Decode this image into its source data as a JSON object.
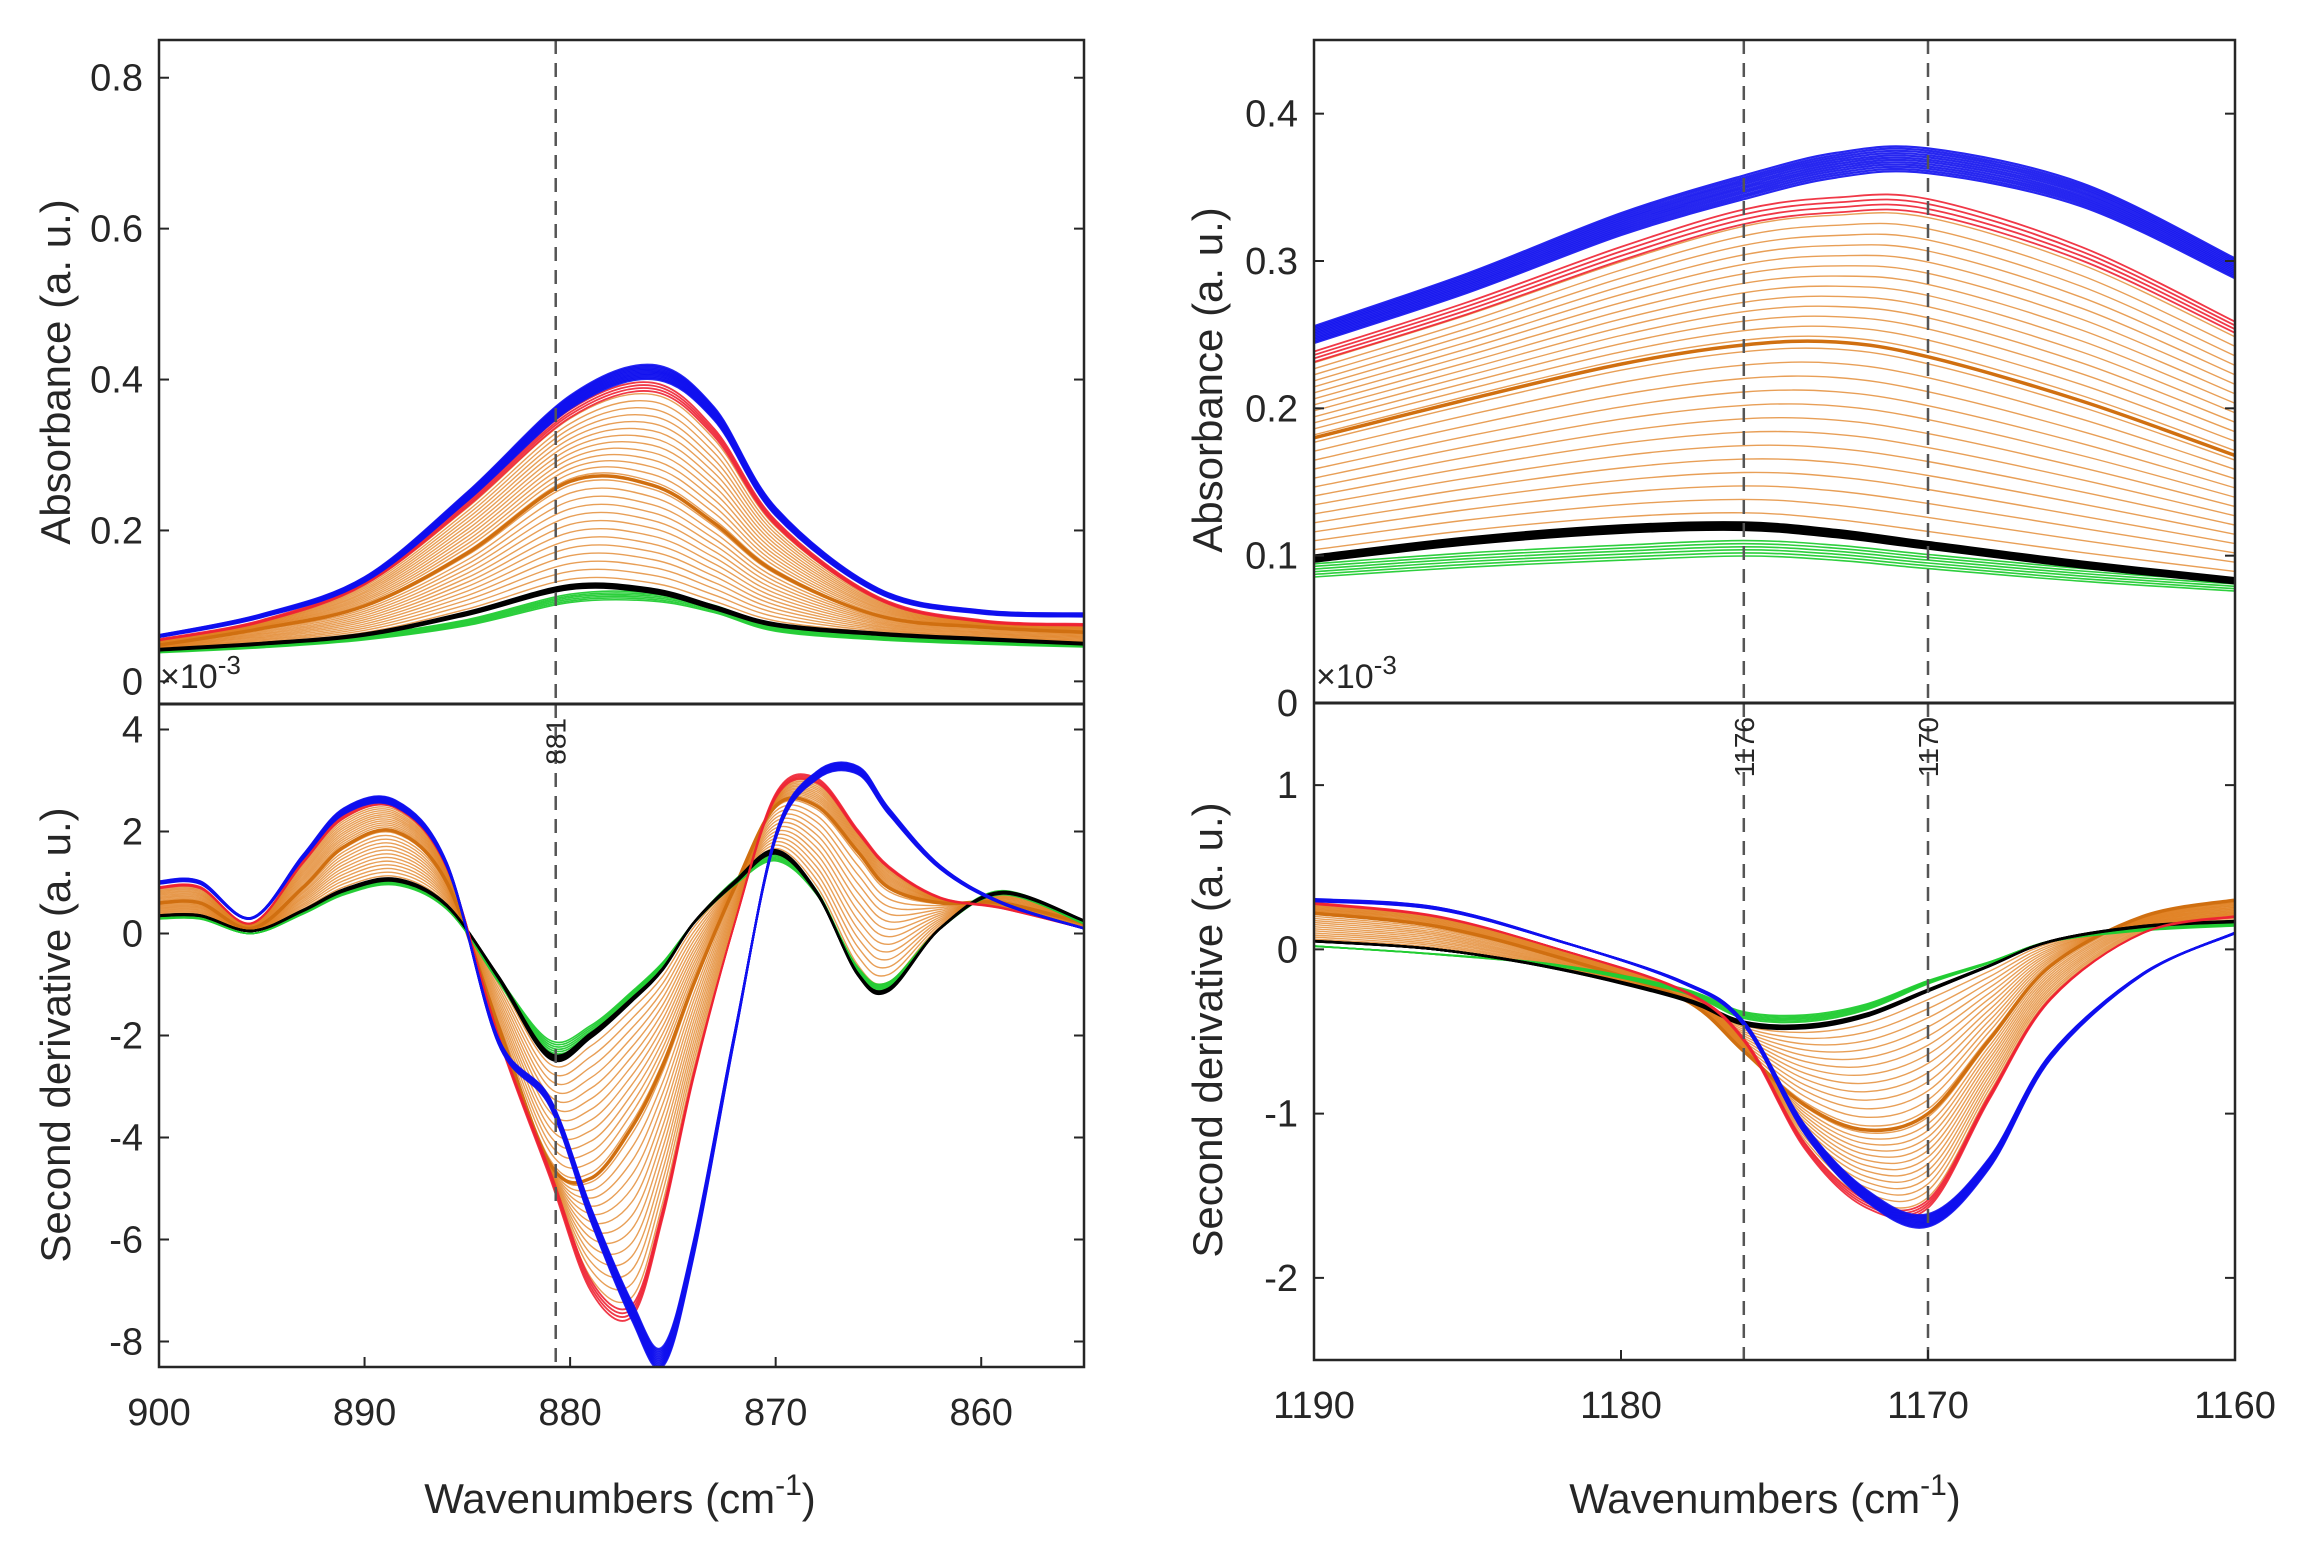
{
  "colors": {
    "frame": "#262626",
    "marker": "#555555",
    "black_series": "#000000",
    "green_series": "#22cc33",
    "orange_series": "#e07f1f",
    "red_series": "#ee2233",
    "blue_series": "#1010ee"
  },
  "labels": {
    "left_absorbance_ylabel": "Absorbance (a. u.)",
    "left_derivative_ylabel": "Second derivative (a. u.)",
    "left_xlabel_main": "Wavenumbers (cm",
    "left_xlabel_sup": "-1",
    "left_xlabel_end": ")",
    "left_multiplier_base": "×10",
    "left_multiplier_exp": "-3",
    "right_absorbance_ylabel": "Absorbance (a. u.)",
    "right_derivative_ylabel": "Second derivative (a. u.)",
    "right_xlabel_main": "Wavenumbers (cm",
    "right_xlabel_sup": "-1",
    "right_xlabel_end": ")",
    "right_multiplier_base": "×10",
    "right_multiplier_exp": "-3"
  },
  "chart_data": [
    {
      "type": "line",
      "panel": "left-absorbance",
      "title": "",
      "xlabel": "",
      "ylabel": "Absorbance (a. u.)",
      "xlim": [
        900,
        855
      ],
      "ylim": [
        -0.03,
        0.85
      ],
      "yticks": [
        0,
        0.2,
        0.4,
        0.6,
        0.8
      ],
      "ytick_labels": [
        "0",
        "0.2",
        "0.4",
        "0.6",
        "0.8"
      ],
      "x_reversed": true,
      "vlines": [
        {
          "x": 880.7,
          "label": "881"
        }
      ],
      "x": [
        900,
        895,
        890,
        885,
        880,
        876,
        873,
        870,
        865,
        860,
        855
      ],
      "series": [
        {
          "name": "green",
          "values": [
            0.04,
            0.047,
            0.058,
            0.078,
            0.11,
            0.112,
            0.096,
            0.07,
            0.058,
            0.052,
            0.048
          ]
        },
        {
          "name": "black",
          "values": [
            0.042,
            0.05,
            0.062,
            0.09,
            0.125,
            0.12,
            0.098,
            0.075,
            0.063,
            0.056,
            0.05
          ]
        },
        {
          "name": "orange",
          "values": [
            0.048,
            0.07,
            0.1,
            0.17,
            0.265,
            0.26,
            0.21,
            0.145,
            0.087,
            0.072,
            0.065
          ]
        },
        {
          "name": "red",
          "values": [
            0.055,
            0.08,
            0.13,
            0.235,
            0.355,
            0.39,
            0.33,
            0.21,
            0.11,
            0.08,
            0.075
          ]
        },
        {
          "name": "blue",
          "values": [
            0.06,
            0.087,
            0.135,
            0.245,
            0.37,
            0.41,
            0.355,
            0.225,
            0.12,
            0.092,
            0.088
          ]
        }
      ]
    },
    {
      "type": "line",
      "panel": "left-second-derivative",
      "title": "",
      "xlabel": "Wavenumbers (cm-1)",
      "ylabel": "Second derivative (a. u.)",
      "xlim": [
        900,
        855
      ],
      "ylim": [
        -8.5,
        4.5
      ],
      "xticks": [
        900,
        890,
        880,
        870,
        860
      ],
      "xtick_labels": [
        "900",
        "890",
        "880",
        "870",
        "860"
      ],
      "yticks": [
        4,
        2,
        0,
        -2,
        -4,
        -6,
        -8
      ],
      "ytick_labels": [
        "4",
        "2",
        "0",
        "-2",
        "-4",
        "-6",
        "-8"
      ],
      "y_multiplier": "×10-3",
      "x_reversed": true,
      "vlines": [
        {
          "x": 880.7,
          "label": "881"
        }
      ],
      "x": [
        900,
        898,
        895.5,
        893,
        891,
        888.5,
        886,
        883.5,
        881,
        879,
        877,
        875.5,
        874,
        872,
        870,
        868,
        866,
        864.5,
        862,
        859,
        855
      ],
      "series": [
        {
          "name": "green",
          "values": [
            0.3,
            0.3,
            0,
            0.4,
            0.8,
            1.0,
            0.5,
            -0.9,
            -2.2,
            -1.9,
            -1.2,
            -0.6,
            0.2,
            1.0,
            1.5,
            0.8,
            -0.7,
            -1.0,
            0.1,
            0.8,
            0.2
          ]
        },
        {
          "name": "black",
          "values": [
            0.35,
            0.35,
            0.05,
            0.45,
            0.85,
            1.05,
            0.55,
            -0.85,
            -2.4,
            -2.0,
            -1.3,
            -0.7,
            0.2,
            1.0,
            1.6,
            0.8,
            -0.8,
            -1.1,
            0.1,
            0.8,
            0.25
          ]
        },
        {
          "name": "orange",
          "values": [
            0.6,
            0.6,
            0.1,
            0.9,
            1.7,
            2.0,
            1.0,
            -1.8,
            -4.5,
            -4.8,
            -3.8,
            -2.6,
            -1.0,
            0.9,
            2.5,
            2.5,
            1.6,
            0.9,
            0.6,
            0.6,
            0.2
          ]
        },
        {
          "name": "red",
          "values": [
            0.9,
            0.9,
            0.2,
            1.4,
            2.3,
            2.5,
            1.3,
            -2.0,
            -4.7,
            -6.9,
            -7.4,
            -5.5,
            -2.8,
            0.2,
            2.7,
            3.0,
            2.0,
            1.3,
            0.7,
            0.5,
            0.1
          ]
        },
        {
          "name": "blue",
          "values": [
            1.0,
            1.0,
            0.3,
            1.5,
            2.4,
            2.55,
            1.35,
            -2.1,
            -3.3,
            -5.5,
            -7.4,
            -8.3,
            -6.2,
            -2.0,
            1.9,
            3.1,
            3.2,
            2.4,
            1.3,
            0.6,
            0.1
          ]
        }
      ]
    },
    {
      "type": "line",
      "panel": "right-absorbance",
      "title": "",
      "xlabel": "",
      "ylabel": "Absorbance (a. u.)",
      "xlim": [
        1190,
        1160
      ],
      "ylim": [
        0,
        0.45
      ],
      "yticks": [
        0,
        0.1,
        0.2,
        0.3,
        0.4
      ],
      "ytick_labels": [
        "0",
        "0.1",
        "0.2",
        "0.3",
        "0.4"
      ],
      "x_reversed": true,
      "vlines": [
        {
          "x": 1176,
          "label": "1176"
        },
        {
          "x": 1170,
          "label": "1170"
        }
      ],
      "x": [
        1190,
        1185,
        1180,
        1176,
        1173,
        1170,
        1165,
        1160
      ],
      "series": [
        {
          "name": "green",
          "values": [
            0.09,
            0.097,
            0.102,
            0.105,
            0.102,
            0.096,
            0.087,
            0.08
          ]
        },
        {
          "name": "black",
          "values": [
            0.098,
            0.11,
            0.118,
            0.12,
            0.115,
            0.107,
            0.094,
            0.083
          ]
        },
        {
          "name": "orange",
          "values": [
            0.18,
            0.206,
            0.23,
            0.243,
            0.245,
            0.235,
            0.205,
            0.168
          ]
        },
        {
          "name": "red",
          "values": [
            0.235,
            0.268,
            0.305,
            0.33,
            0.338,
            0.337,
            0.305,
            0.255
          ]
        },
        {
          "name": "blue",
          "values": [
            0.25,
            0.285,
            0.325,
            0.35,
            0.365,
            0.368,
            0.345,
            0.295
          ]
        }
      ]
    },
    {
      "type": "line",
      "panel": "right-second-derivative",
      "title": "",
      "xlabel": "Wavenumbers (cm-1)",
      "ylabel": "Second derivative (a. u.)",
      "xlim": [
        1190,
        1160
      ],
      "ylim": [
        -2.5,
        1.5
      ],
      "xticks": [
        1190,
        1180,
        1170,
        1160
      ],
      "xtick_labels": [
        "1190",
        "1180",
        "1170",
        "1160"
      ],
      "yticks": [
        1,
        0,
        -1,
        -2
      ],
      "ytick_labels": [
        "1",
        "0",
        "-1",
        "-2"
      ],
      "y_multiplier": "×10-3",
      "x_reversed": true,
      "vlines": [
        {
          "x": 1176,
          "label": "1176"
        },
        {
          "x": 1170,
          "label": "1170"
        }
      ],
      "x": [
        1190,
        1186,
        1182,
        1178,
        1176,
        1174,
        1172,
        1170,
        1168,
        1166,
        1163,
        1160
      ],
      "series": [
        {
          "name": "green",
          "values": [
            0.02,
            -0.03,
            -0.1,
            -0.25,
            -0.4,
            -0.42,
            -0.35,
            -0.2,
            -0.08,
            0.05,
            0.12,
            0.15
          ]
        },
        {
          "name": "black",
          "values": [
            0.05,
            0.0,
            -0.12,
            -0.3,
            -0.45,
            -0.47,
            -0.4,
            -0.25,
            -0.1,
            0.05,
            0.14,
            0.17
          ]
        },
        {
          "name": "orange",
          "values": [
            0.22,
            0.14,
            -0.05,
            -0.3,
            -0.62,
            -0.95,
            -1.1,
            -1.0,
            -0.55,
            -0.1,
            0.2,
            0.3
          ]
        },
        {
          "name": "red",
          "values": [
            0.28,
            0.2,
            0.0,
            -0.25,
            -0.55,
            -1.2,
            -1.55,
            -1.55,
            -0.9,
            -0.3,
            0.1,
            0.2
          ]
        },
        {
          "name": "blue",
          "values": [
            0.3,
            0.25,
            0.05,
            -0.2,
            -0.45,
            -1.1,
            -1.5,
            -1.65,
            -1.3,
            -0.65,
            -0.15,
            0.1
          ]
        }
      ]
    }
  ]
}
